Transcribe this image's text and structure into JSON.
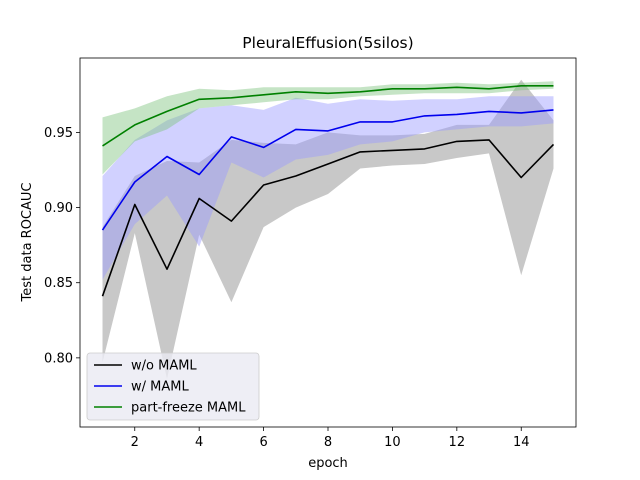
{
  "chart_data": {
    "type": "line",
    "title": "PleuralEffusion(5silos)",
    "xlabel": "epoch",
    "ylabel": "Test data ROCAUC",
    "xlim": [
      0.3,
      15.7
    ],
    "ylim": [
      0.754,
      0.9995
    ],
    "xticks": [
      2,
      4,
      6,
      8,
      10,
      12,
      14
    ],
    "yticks": [
      0.8,
      0.85,
      0.9,
      0.95
    ],
    "ytick_labels": [
      "0.80",
      "0.85",
      "0.90",
      "0.95"
    ],
    "grid": false,
    "legend_position": "lower-left",
    "x": [
      1,
      2,
      3,
      4,
      5,
      6,
      7,
      8,
      9,
      10,
      11,
      12,
      13,
      14,
      15
    ],
    "series": [
      {
        "name": "w/o MAML",
        "color": "#000000",
        "band_color": "#c8c8c8",
        "band_opacity": 1,
        "values": [
          0.841,
          0.902,
          0.859,
          0.906,
          0.891,
          0.915,
          0.921,
          0.929,
          0.937,
          0.938,
          0.939,
          0.944,
          0.945,
          0.92,
          0.942
        ],
        "lower": [
          0.797,
          0.883,
          0.786,
          0.882,
          0.837,
          0.887,
          0.9,
          0.909,
          0.926,
          0.928,
          0.929,
          0.933,
          0.936,
          0.855,
          0.926
        ],
        "upper": [
          0.887,
          0.921,
          0.931,
          0.93,
          0.945,
          0.943,
          0.942,
          0.95,
          0.948,
          0.948,
          0.949,
          0.955,
          0.955,
          0.985,
          0.958
        ]
      },
      {
        "name": "w/ MAML",
        "color": "#0000ee",
        "band_color": "#9a9aff",
        "band_opacity": 0.45,
        "values": [
          0.885,
          0.917,
          0.934,
          0.922,
          0.947,
          0.94,
          0.952,
          0.951,
          0.957,
          0.957,
          0.961,
          0.962,
          0.964,
          0.963,
          0.965
        ],
        "lower": [
          0.852,
          0.889,
          0.908,
          0.874,
          0.93,
          0.92,
          0.932,
          0.935,
          0.942,
          0.944,
          0.95,
          0.952,
          0.954,
          0.954,
          0.956
        ],
        "upper": [
          0.921,
          0.945,
          0.958,
          0.966,
          0.968,
          0.965,
          0.973,
          0.969,
          0.972,
          0.971,
          0.972,
          0.972,
          0.974,
          0.974,
          0.974
        ]
      },
      {
        "name": "part-freeze MAML",
        "color": "#008000",
        "band_color": "#7fc47f",
        "band_opacity": 0.45,
        "values": [
          0.941,
          0.955,
          0.964,
          0.972,
          0.973,
          0.975,
          0.977,
          0.976,
          0.977,
          0.979,
          0.979,
          0.98,
          0.979,
          0.981,
          0.981
        ],
        "lower": [
          0.922,
          0.944,
          0.952,
          0.966,
          0.968,
          0.97,
          0.972,
          0.972,
          0.974,
          0.975,
          0.976,
          0.976,
          0.976,
          0.978,
          0.979
        ],
        "upper": [
          0.96,
          0.966,
          0.974,
          0.979,
          0.978,
          0.98,
          0.98,
          0.98,
          0.98,
          0.982,
          0.982,
          0.983,
          0.982,
          0.983,
          0.984
        ]
      }
    ]
  }
}
